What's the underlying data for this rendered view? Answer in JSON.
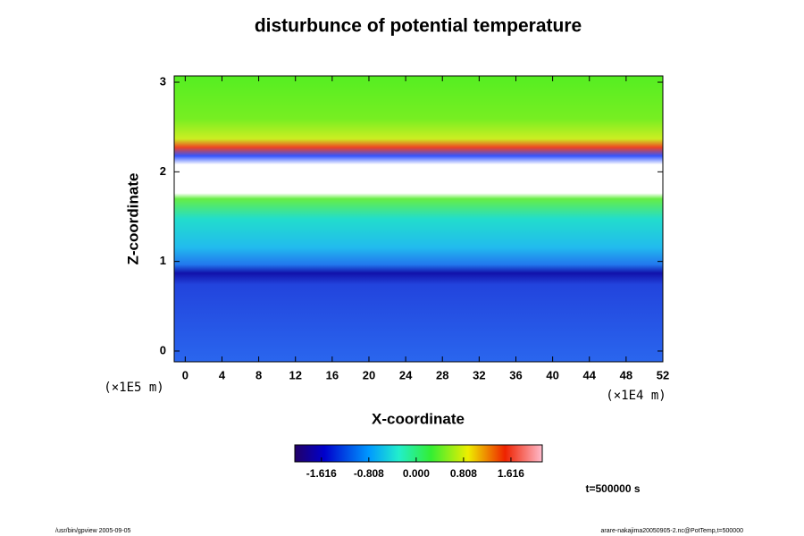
{
  "chart_data": {
    "type": "heatmap",
    "title": "disturbunce of potential temperature",
    "xlabel": "X-coordinate",
    "ylabel": "Z-coordinate",
    "x_scale_label": "(×1E4 m)",
    "y_scale_label": "(×1E5 m)",
    "xlim": [
      -1.2,
      52
    ],
    "xticks": [
      0,
      4,
      8,
      12,
      16,
      20,
      24,
      28,
      32,
      36,
      40,
      44,
      48,
      52
    ],
    "ylim": [
      -0.12,
      3.07
    ],
    "yticks": [
      0,
      1,
      2,
      3
    ],
    "colorbar": {
      "lim": [
        -2.07,
        2.15
      ],
      "ticks": [
        -1.616,
        -0.808,
        {
          "value": 0,
          "label": "0.000"
        },
        0.808,
        1.616
      ]
    },
    "time_label": "t=500000 s",
    "footer_left": "/usr/bin/gpview 2005-09-05",
    "footer_right": "arare-nakajima20050905-2.nc@PotTemp,t=500000"
  }
}
